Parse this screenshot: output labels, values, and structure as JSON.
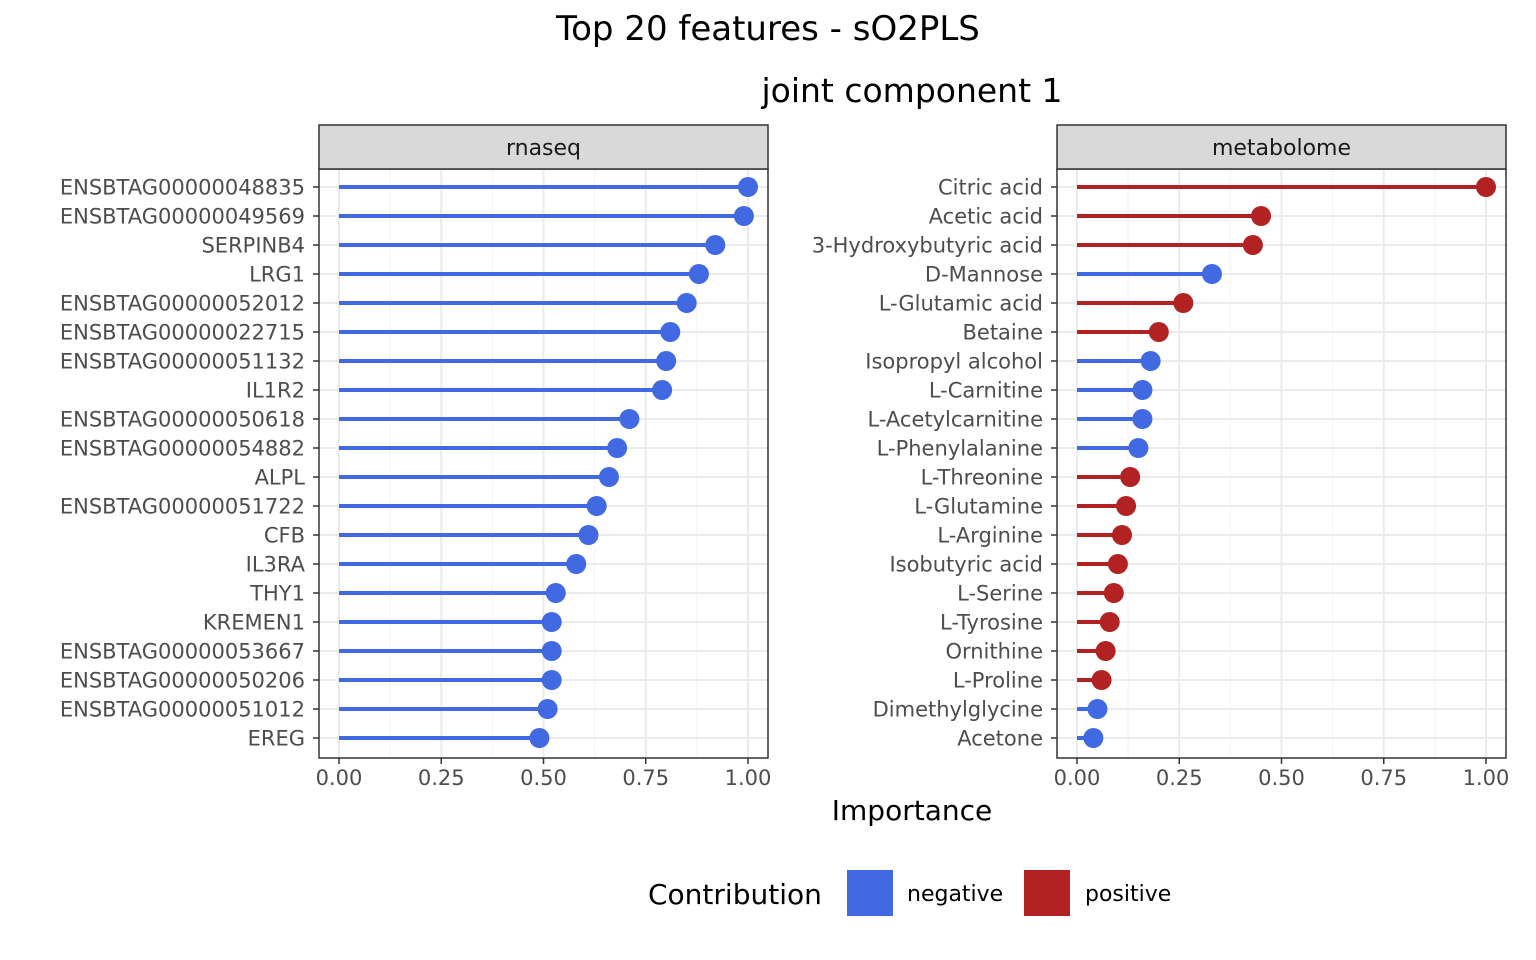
{
  "chart_data": {
    "type": "lollipop",
    "title": "Top 20 features - sO2PLS",
    "subtitle": "joint component 1",
    "xlabel": "Importance",
    "xlim": [
      0,
      1
    ],
    "x_ticks": [
      "0.00",
      "0.25",
      "0.50",
      "0.75",
      "1.00"
    ],
    "grid": true,
    "legend": {
      "title": "Contribution",
      "position": "bottom",
      "items": [
        {
          "label": "negative",
          "color": "#4169E1"
        },
        {
          "label": "positive",
          "color": "#B22222"
        }
      ]
    },
    "colors": {
      "negative": "#4169E1",
      "positive": "#B22222"
    },
    "panels": [
      {
        "name": "rnaseq",
        "features": [
          {
            "label": "ENSBTAG00000048835",
            "value": 1.0,
            "contribution": "negative"
          },
          {
            "label": "ENSBTAG00000049569",
            "value": 0.99,
            "contribution": "negative"
          },
          {
            "label": "SERPINB4",
            "value": 0.92,
            "contribution": "negative"
          },
          {
            "label": "LRG1",
            "value": 0.88,
            "contribution": "negative"
          },
          {
            "label": "ENSBTAG00000052012",
            "value": 0.85,
            "contribution": "negative"
          },
          {
            "label": "ENSBTAG00000022715",
            "value": 0.81,
            "contribution": "negative"
          },
          {
            "label": "ENSBTAG00000051132",
            "value": 0.8,
            "contribution": "negative"
          },
          {
            "label": "IL1R2",
            "value": 0.79,
            "contribution": "negative"
          },
          {
            "label": "ENSBTAG00000050618",
            "value": 0.71,
            "contribution": "negative"
          },
          {
            "label": "ENSBTAG00000054882",
            "value": 0.68,
            "contribution": "negative"
          },
          {
            "label": "ALPL",
            "value": 0.66,
            "contribution": "negative"
          },
          {
            "label": "ENSBTAG00000051722",
            "value": 0.63,
            "contribution": "negative"
          },
          {
            "label": "CFB",
            "value": 0.61,
            "contribution": "negative"
          },
          {
            "label": "IL3RA",
            "value": 0.58,
            "contribution": "negative"
          },
          {
            "label": "THY1",
            "value": 0.53,
            "contribution": "negative"
          },
          {
            "label": "KREMEN1",
            "value": 0.52,
            "contribution": "negative"
          },
          {
            "label": "ENSBTAG00000053667",
            "value": 0.52,
            "contribution": "negative"
          },
          {
            "label": "ENSBTAG00000050206",
            "value": 0.52,
            "contribution": "negative"
          },
          {
            "label": "ENSBTAG00000051012",
            "value": 0.51,
            "contribution": "negative"
          },
          {
            "label": "EREG",
            "value": 0.49,
            "contribution": "negative"
          }
        ]
      },
      {
        "name": "metabolome",
        "features": [
          {
            "label": "Citric acid",
            "value": 1.0,
            "contribution": "positive"
          },
          {
            "label": "Acetic acid",
            "value": 0.45,
            "contribution": "positive"
          },
          {
            "label": "3-Hydroxybutyric acid",
            "value": 0.43,
            "contribution": "positive"
          },
          {
            "label": "D-Mannose",
            "value": 0.33,
            "contribution": "negative"
          },
          {
            "label": "L-Glutamic acid",
            "value": 0.26,
            "contribution": "positive"
          },
          {
            "label": "Betaine",
            "value": 0.2,
            "contribution": "positive"
          },
          {
            "label": "Isopropyl alcohol",
            "value": 0.18,
            "contribution": "negative"
          },
          {
            "label": "L-Carnitine",
            "value": 0.16,
            "contribution": "negative"
          },
          {
            "label": "L-Acetylcarnitine",
            "value": 0.16,
            "contribution": "negative"
          },
          {
            "label": "L-Phenylalanine",
            "value": 0.15,
            "contribution": "negative"
          },
          {
            "label": "L-Threonine",
            "value": 0.13,
            "contribution": "positive"
          },
          {
            "label": "L-Glutamine",
            "value": 0.12,
            "contribution": "positive"
          },
          {
            "label": "L-Arginine",
            "value": 0.11,
            "contribution": "positive"
          },
          {
            "label": "Isobutyric acid",
            "value": 0.1,
            "contribution": "positive"
          },
          {
            "label": "L-Serine",
            "value": 0.09,
            "contribution": "positive"
          },
          {
            "label": "L-Tyrosine",
            "value": 0.08,
            "contribution": "positive"
          },
          {
            "label": "Ornithine",
            "value": 0.07,
            "contribution": "positive"
          },
          {
            "label": "L-Proline",
            "value": 0.06,
            "contribution": "positive"
          },
          {
            "label": "Dimethylglycine",
            "value": 0.05,
            "contribution": "negative"
          },
          {
            "label": "Acetone",
            "value": 0.04,
            "contribution": "negative"
          }
        ]
      }
    ]
  }
}
